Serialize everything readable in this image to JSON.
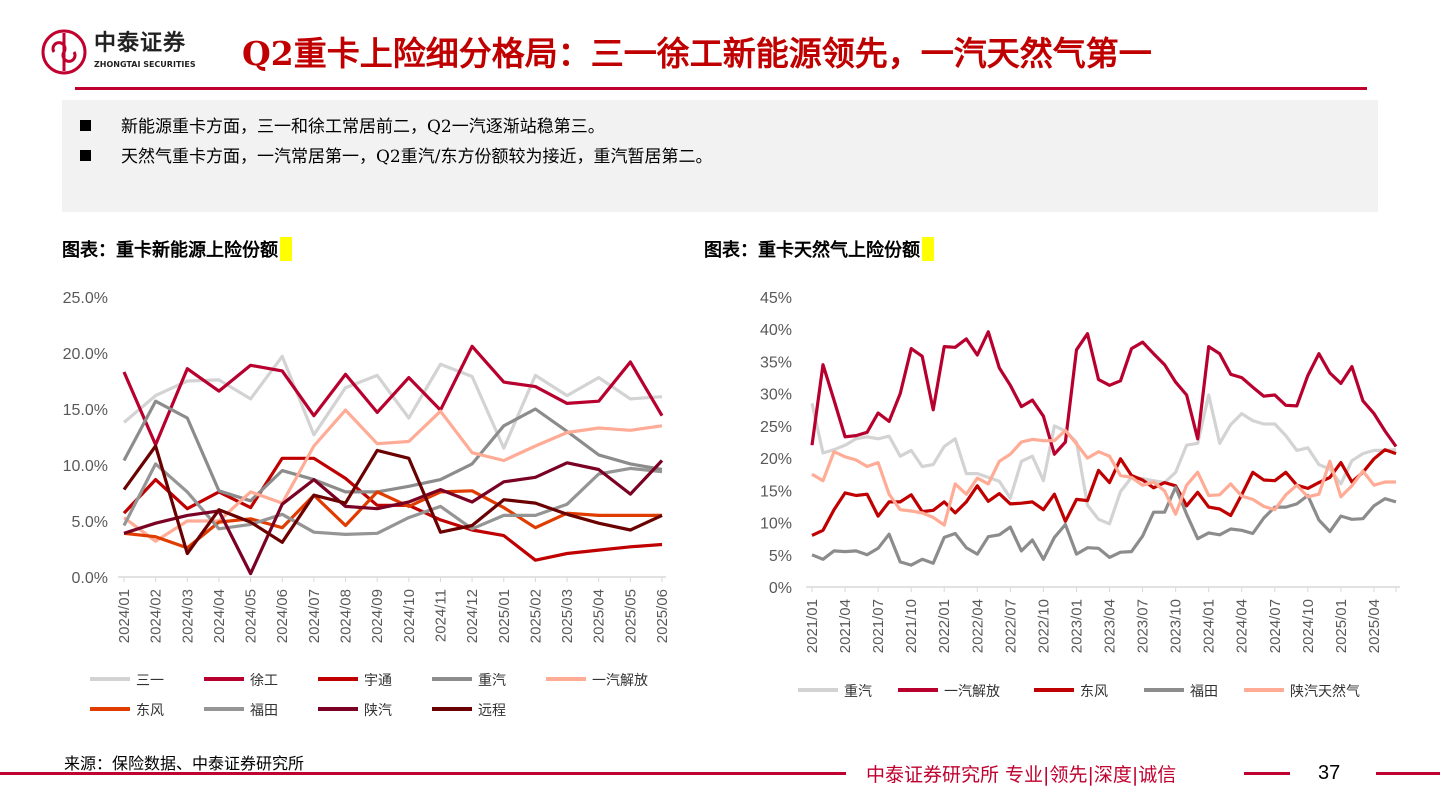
{
  "header": {
    "logo_name": "中泰证券",
    "logo_sub": "ZHONGTAI SECURITIES",
    "title": "Q2重卡上险细分格局：三一徐工新能源领先，一汽天然气第一",
    "accent": "#c00000"
  },
  "summary": {
    "bullets": [
      "新能源重卡方面，三一和徐工常居前二，Q2一汽逐渐站稳第三。",
      "天然气重卡方面，一汽常居第一，Q2重汽/东方份额较为接近，重汽暂居第二。"
    ]
  },
  "chart_titles": [
    "图表：重卡新能源上险份额",
    "图表：重卡天然气上险份额"
  ],
  "chart_data": [
    {
      "type": "line",
      "title": "图表：重卡新能源上险份额",
      "categories": [
        "2024/01",
        "2024/02",
        "2024/03",
        "2024/04",
        "2024/05",
        "2024/06",
        "2024/07",
        "2024/08",
        "2024/09",
        "2024/10",
        "2024/11",
        "2024/12",
        "2025/01",
        "2025/02",
        "2025/03",
        "2025/04",
        "2025/05",
        "2025/06"
      ],
      "ylim": [
        0,
        25
      ],
      "yticks": [
        "0.0%",
        "5.0%",
        "10.0%",
        "15.0%",
        "20.0%",
        "25.0%"
      ],
      "ytick_values": [
        0,
        5,
        10,
        15,
        20,
        25
      ],
      "grid": false,
      "legend": "bottom",
      "series": [
        {
          "name": "三一",
          "color": "#d3d3d3",
          "values": [
            13.8,
            16.2,
            17.5,
            17.6,
            15.9,
            19.7,
            12.7,
            16.9,
            18.0,
            14.2,
            19.0,
            17.9,
            11.5,
            18.0,
            16.2,
            17.8,
            15.9,
            16.1
          ]
        },
        {
          "name": "徐工",
          "color": "#b8002f",
          "values": [
            18.3,
            11.8,
            18.6,
            16.6,
            18.9,
            18.4,
            14.4,
            18.1,
            14.7,
            17.8,
            14.9,
            20.6,
            17.4,
            17.0,
            15.5,
            15.7,
            19.2,
            14.4
          ]
        },
        {
          "name": "宇通",
          "color": "#c00000",
          "values": [
            5.7,
            8.7,
            6.1,
            7.6,
            6.2,
            10.6,
            10.6,
            8.8,
            6.4,
            6.4,
            5.1,
            4.2,
            3.7,
            1.5,
            2.1,
            2.4,
            2.7,
            2.9
          ]
        },
        {
          "name": "重汽",
          "color": "#8c8c8c",
          "values": [
            10.4,
            15.7,
            14.2,
            7.7,
            6.8,
            9.5,
            8.7,
            7.6,
            7.6,
            8.1,
            8.7,
            10.1,
            13.5,
            15.0,
            13.0,
            10.9,
            10.1,
            9.6
          ]
        },
        {
          "name": "一汽解放",
          "color": "#ffab96",
          "values": [
            5.3,
            3.2,
            5.0,
            5.0,
            7.6,
            6.6,
            11.7,
            14.9,
            11.9,
            12.1,
            14.8,
            11.1,
            10.4,
            11.7,
            12.9,
            13.3,
            13.1,
            13.5
          ]
        },
        {
          "name": "东风",
          "color": "#e03c00",
          "values": [
            3.9,
            3.6,
            2.6,
            4.9,
            5.2,
            4.4,
            7.3,
            4.6,
            7.6,
            6.3,
            7.6,
            7.7,
            6.2,
            4.4,
            5.7,
            5.5,
            5.5,
            5.5
          ]
        },
        {
          "name": "福田",
          "color": "#959595",
          "values": [
            4.6,
            10.1,
            7.6,
            4.3,
            4.7,
            5.6,
            4.0,
            3.8,
            3.9,
            5.3,
            6.3,
            4.3,
            5.5,
            5.5,
            6.5,
            9.2,
            9.7,
            9.4
          ]
        },
        {
          "name": "陕汽",
          "color": "#7a0024",
          "values": [
            3.9,
            4.8,
            5.5,
            5.9,
            0.3,
            6.5,
            8.7,
            6.3,
            6.1,
            6.7,
            7.8,
            6.7,
            8.5,
            8.9,
            10.2,
            9.6,
            7.4,
            10.4
          ]
        },
        {
          "name": "远程",
          "color": "#6a0000",
          "values": [
            7.8,
            11.7,
            2.1,
            6.0,
            4.9,
            3.1,
            7.3,
            6.6,
            11.3,
            10.6,
            4.0,
            4.6,
            6.9,
            6.6,
            5.6,
            4.8,
            4.2,
            5.5
          ]
        }
      ]
    },
    {
      "type": "line",
      "title": "图表：重卡天然气上险份额",
      "x_start": "2021/01",
      "x_end": "2025/06",
      "xticks": [
        "2021/01",
        "2021/04",
        "2021/07",
        "2021/10",
        "2022/01",
        "2022/04",
        "2022/07",
        "2022/10",
        "2023/01",
        "2023/04",
        "2023/07",
        "2023/10",
        "2024/01",
        "2024/04",
        "2024/07",
        "2024/10",
        "2025/01",
        "2025/04"
      ],
      "ylim": [
        0,
        45
      ],
      "yticks": [
        "0%",
        "5%",
        "10%",
        "15%",
        "20%",
        "25%",
        "30%",
        "35%",
        "40%",
        "45%"
      ],
      "ytick_values": [
        0,
        5,
        10,
        15,
        20,
        25,
        30,
        35,
        40,
        45
      ],
      "grid": false,
      "legend": "bottom",
      "series": [
        {
          "name": "重汽",
          "color": "#d3d3d3",
          "values": [
            28.5,
            20.8,
            21.3,
            22,
            23,
            23.3,
            23,
            23.4,
            20.3,
            21.2,
            18.7,
            19,
            21.8,
            23,
            17.6,
            17.6,
            17,
            16.4,
            13.8,
            19.5,
            20.3,
            16.5,
            25,
            24.2,
            22.5,
            12.7,
            10.5,
            9.8,
            14.8,
            17,
            16.8,
            16.5,
            16.2,
            17.8,
            22,
            22.3,
            29.8,
            22.3,
            25.2,
            26.9,
            25.8,
            25.3,
            25.3,
            23.5,
            21.2,
            21.6,
            19,
            18.3,
            16,
            19.6,
            20.7,
            21.2,
            21.2,
            21.3
          ]
        },
        {
          "name": "一汽解放",
          "color": "#b8002f",
          "values": [
            22,
            34.5,
            29,
            23.3,
            23.5,
            24,
            27,
            25.7,
            30,
            37,
            35.8,
            27.5,
            37.3,
            37.2,
            38.5,
            36,
            39.6,
            34,
            31.3,
            28,
            29,
            26.5,
            20.6,
            22.5,
            36.8,
            39.3,
            32.2,
            31.3,
            32,
            37,
            38,
            36.2,
            34.5,
            31.8,
            29.8,
            23,
            37.3,
            36.2,
            33,
            32.5,
            31,
            29.6,
            29.8,
            28.2,
            28.1,
            32.8,
            36.2,
            33.2,
            31.6,
            34.2,
            28.9,
            26.9,
            24.2,
            21.8
          ]
        },
        {
          "name": "东风",
          "color": "#c00000",
          "values": [
            8,
            8.8,
            12,
            14.6,
            14.2,
            14.4,
            11,
            13.2,
            13.2,
            14.3,
            11.7,
            11.9,
            13.2,
            11.5,
            13.2,
            15.7,
            13.3,
            14.5,
            12.9,
            13,
            13.2,
            12,
            14.4,
            10.2,
            13.6,
            13.4,
            18.1,
            16.2,
            19.9,
            17.3,
            16.6,
            15.4,
            16.2,
            15.7,
            12.6,
            14.7,
            12.4,
            12.1,
            11.1,
            14.3,
            17.8,
            16.6,
            16.5,
            17.8,
            15.8,
            15.3,
            16.2,
            17,
            19.3,
            16.3,
            17.8,
            19.9,
            21.3,
            20.7
          ]
        },
        {
          "name": "福田",
          "color": "#8c8c8c",
          "values": [
            5,
            4.3,
            5.6,
            5.5,
            5.6,
            5,
            6,
            8.2,
            3.9,
            3.4,
            4.3,
            3.7,
            7.7,
            8.3,
            6.1,
            5.1,
            7.8,
            8.1,
            9.3,
            5.6,
            7.3,
            4.3,
            7.7,
            9.7,
            5.1,
            6.1,
            6,
            4.6,
            5.4,
            5.5,
            7.9,
            11.6,
            11.6,
            15.5,
            11.3,
            7.5,
            8.4,
            8.1,
            9,
            8.8,
            8.3,
            10.7,
            12.4,
            12.4,
            12.9,
            14.2,
            10.4,
            8.6,
            11,
            10.5,
            10.6,
            12.6,
            13.7,
            13.2
          ]
        },
        {
          "name": "陕汽天然气",
          "color": "#ffab96",
          "values": [
            17.5,
            16.5,
            21,
            20.2,
            19.7,
            18.7,
            19.3,
            14.4,
            12,
            11.8,
            11.5,
            10.8,
            9.6,
            16,
            14.4,
            16.9,
            16,
            19.5,
            20.6,
            22.5,
            22.9,
            22.7,
            22.7,
            24.3,
            22.2,
            20,
            21,
            20.3,
            17.3,
            17,
            15.8,
            16.3,
            14.9,
            11.3,
            15.8,
            17.8,
            14.2,
            14.3,
            16,
            14.1,
            13.6,
            12.5,
            12,
            14.3,
            15.8,
            14,
            14.4,
            19.5,
            14,
            15.7,
            18,
            15.8,
            16.3,
            16.3
          ]
        }
      ]
    }
  ],
  "source": "来源：保险数据、中泰证券研究所",
  "footer": {
    "text": "中泰证券研究所 专业|领先|深度|诚信",
    "page": "37"
  }
}
